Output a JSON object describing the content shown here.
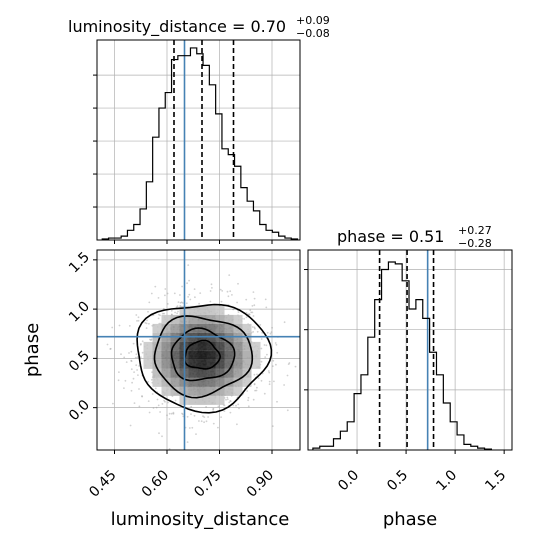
{
  "chart_data": [
    {
      "type": "histogram",
      "panel": "top-left",
      "title_param": "luminosity_distance",
      "title_value": "0.70",
      "title_plus": "+0.09",
      "title_minus": "−0.08",
      "xlim": [
        0.4,
        0.98
      ],
      "bin_edges": [
        0.415,
        0.433,
        0.451,
        0.469,
        0.487,
        0.505,
        0.523,
        0.541,
        0.559,
        0.577,
        0.595,
        0.613,
        0.631,
        0.649,
        0.667,
        0.685,
        0.703,
        0.721,
        0.739,
        0.757,
        0.775,
        0.793,
        0.811,
        0.829,
        0.847,
        0.865,
        0.883,
        0.901,
        0.919,
        0.937,
        0.955,
        0.973
      ],
      "counts": [
        0.005,
        0.01,
        0.01,
        0.02,
        0.05,
        0.08,
        0.16,
        0.3,
        0.53,
        0.68,
        0.76,
        0.93,
        0.95,
        0.95,
        0.99,
        0.96,
        0.9,
        0.8,
        0.65,
        0.47,
        0.44,
        0.38,
        0.27,
        0.2,
        0.15,
        0.08,
        0.05,
        0.04,
        0.02,
        0.01,
        0.005
      ],
      "quantile_lines": [
        0.62,
        0.7,
        0.79
      ],
      "truth_line": 0.65
    },
    {
      "type": "scatter",
      "panel": "bottom-left",
      "xlabel": "luminosity_distance",
      "ylabel": "phase",
      "xlim": [
        0.4,
        0.98
      ],
      "ylim": [
        -0.43,
        1.6
      ],
      "xticks": [
        "0.45",
        "0.60",
        "0.75",
        "0.90"
      ],
      "xtick_values": [
        0.45,
        0.6,
        0.75,
        0.9
      ],
      "yticks": [
        "0.0",
        "0.5",
        "1.0",
        "1.5"
      ],
      "ytick_values": [
        0.0,
        0.5,
        1.0,
        1.5
      ],
      "density_center": [
        0.7,
        0.53
      ],
      "spread": [
        0.09,
        0.28
      ],
      "truth_x": 0.65,
      "truth_y": 0.72
    },
    {
      "type": "histogram",
      "panel": "bottom-right",
      "title_param": "phase",
      "title_value": "0.51",
      "title_plus": "+0.27",
      "title_minus": "−0.28",
      "xlabel": "phase",
      "xlim": [
        -0.5,
        1.58
      ],
      "xticks": [
        "0.0",
        "0.5",
        "1.0",
        "1.5"
      ],
      "xtick_values": [
        0.0,
        0.5,
        1.0,
        1.5
      ],
      "bin_edges": [
        -0.45,
        -0.38,
        -0.31,
        -0.24,
        -0.17,
        -0.1,
        -0.03,
        0.04,
        0.11,
        0.18,
        0.25,
        0.32,
        0.39,
        0.46,
        0.53,
        0.6,
        0.67,
        0.74,
        0.81,
        0.88,
        0.95,
        1.02,
        1.09,
        1.16,
        1.23,
        1.3,
        1.37
      ],
      "counts": [
        0.01,
        0.02,
        0.02,
        0.06,
        0.1,
        0.15,
        0.3,
        0.4,
        0.6,
        0.8,
        0.96,
        1.0,
        0.99,
        0.9,
        0.75,
        0.8,
        0.7,
        0.52,
        0.4,
        0.25,
        0.15,
        0.08,
        0.03,
        0.02,
        0.01,
        0.005
      ],
      "quantile_lines": [
        0.23,
        0.51,
        0.78
      ],
      "truth_line": 0.72
    }
  ],
  "colors": {
    "hist": "#000000",
    "truth": "#4682b4",
    "grid": "#b0b0b0",
    "scatter": "#9a9a9a"
  }
}
